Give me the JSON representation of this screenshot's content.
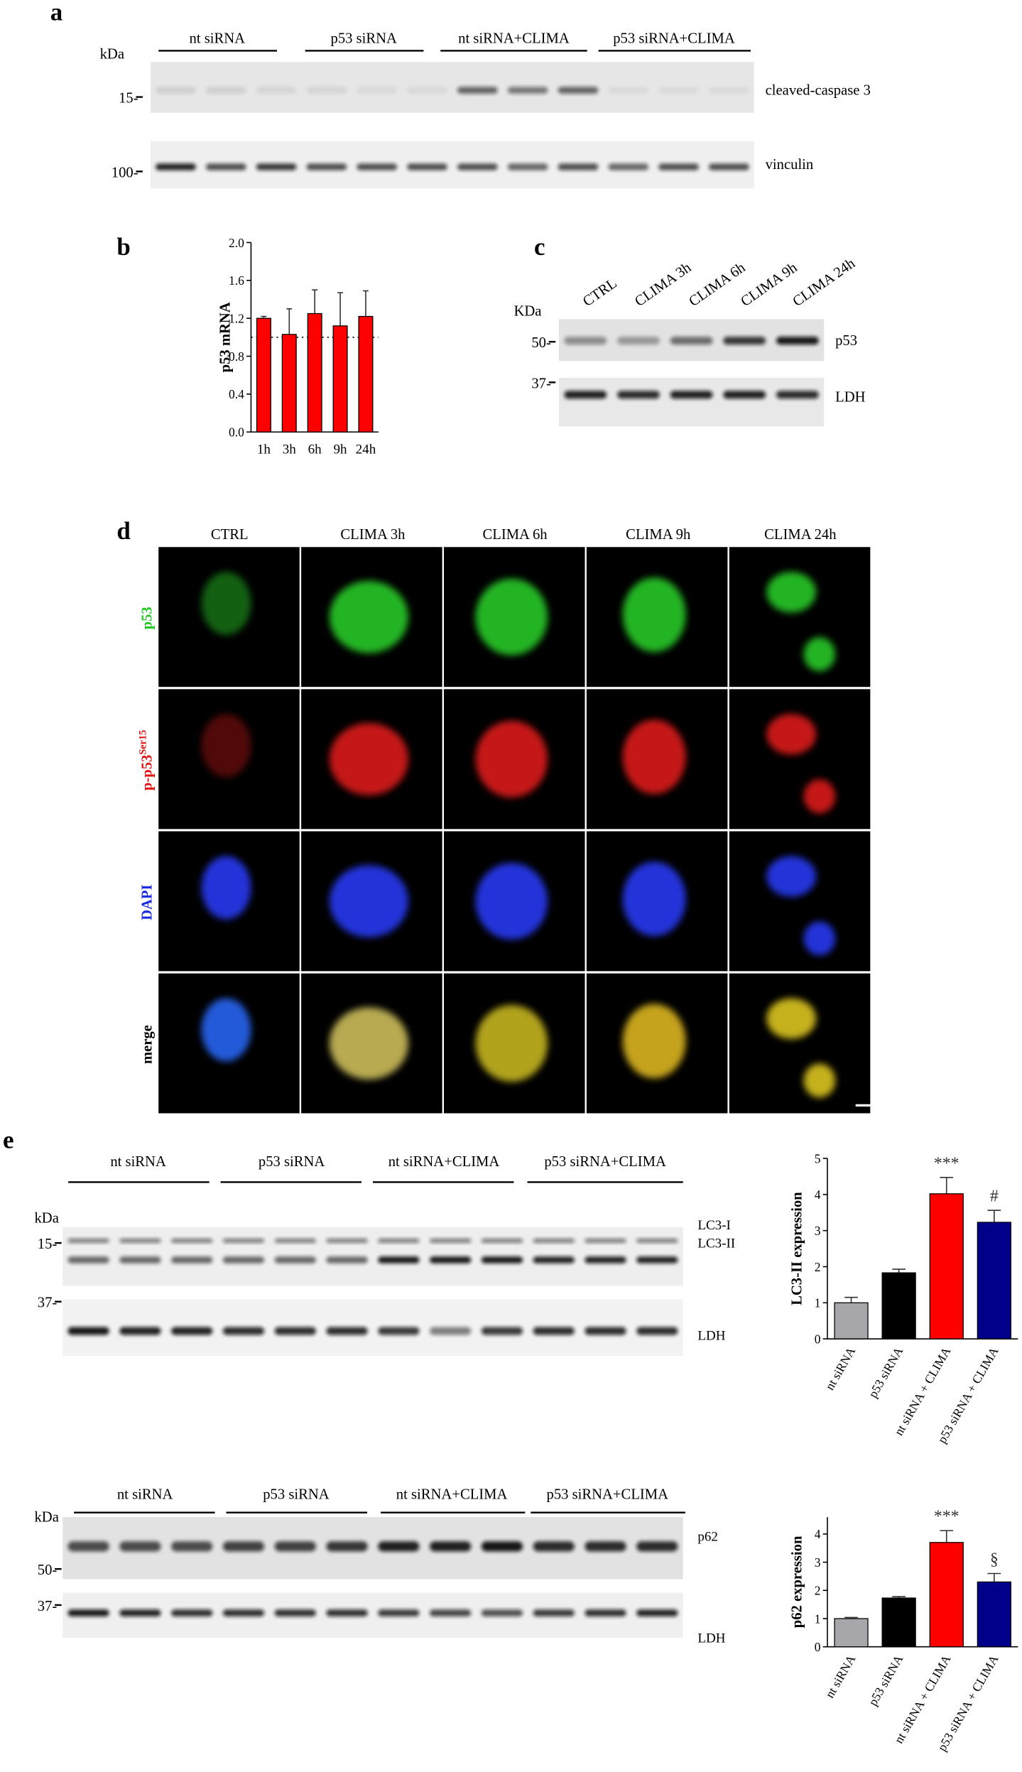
{
  "panels": {
    "a": {
      "letter": "a",
      "kda": "kDa",
      "groups": [
        "nt siRNA",
        "p53 siRNA",
        "nt siRNA+CLIMA",
        "p53 siRNA+CLIMA"
      ],
      "markers": [
        "15-",
        "100-"
      ],
      "bands": [
        "cleaved-caspase 3",
        "vinculin"
      ]
    },
    "b": {
      "letter": "b"
    },
    "c": {
      "letter": "c",
      "lanes": [
        "CTRL",
        "CLIMA 3h",
        "CLIMA 6h",
        "CLIMA 9h",
        "CLIMA 24h"
      ],
      "kda": "KDa",
      "markers": [
        "50-",
        "37-"
      ],
      "bands": [
        "p53",
        "LDH"
      ]
    },
    "d": {
      "letter": "d",
      "columns": [
        "CTRL",
        "CLIMA 3h",
        "CLIMA 6h",
        "CLIMA 9h",
        "CLIMA 24h"
      ],
      "rows": [
        {
          "label": "p53"
        },
        {
          "label": "p-p53",
          "superscript": "Ser15"
        },
        {
          "label": "DAPI"
        },
        {
          "label": "merge"
        }
      ]
    },
    "e": {
      "letter": "e",
      "top": {
        "groups": [
          "nt siRNA",
          "p53 siRNA",
          "nt siRNA+CLIMA",
          "p53 siRNA+CLIMA"
        ],
        "kda": "kDa",
        "markers": [
          "15-",
          "37-"
        ],
        "bands": [
          "LC3-I",
          "LC3-II",
          "LDH"
        ]
      },
      "bottom": {
        "groups": [
          "nt siRNA",
          "p53 siRNA",
          "nt siRNA+CLIMA",
          "p53 siRNA+CLIMA"
        ],
        "kda": "kDa",
        "markers": [
          "50-",
          "37-"
        ],
        "bands": [
          "p62",
          "LDH"
        ]
      }
    }
  },
  "chart_data": [
    {
      "type": "bar",
      "y_label": "p53 mRNA",
      "categories": [
        "1h",
        "3h",
        "6h",
        "9h",
        "24h"
      ],
      "values": [
        1.2,
        1.03,
        1.25,
        1.12,
        1.22
      ],
      "errors": [
        0.02,
        0.27,
        0.25,
        0.35,
        0.27
      ],
      "color": "#ff0000",
      "ylim": [
        0,
        2
      ],
      "yticks": [
        {
          "value": 0,
          "label": "0.0"
        },
        {
          "value": 0.4,
          "label": "0.4"
        },
        {
          "value": 0.8,
          "label": "0.8"
        },
        {
          "value": 1.2,
          "label": "1.2"
        },
        {
          "value": 1.6,
          "label": "1.6"
        },
        {
          "value": 2,
          "label": "2.0"
        }
      ],
      "reference_line": 1
    },
    {
      "type": "bar",
      "y_label": "LC3-II expression",
      "categories": [
        "nt siRNA",
        "p53 siRNA",
        "nt siRNA + CLIMA",
        "p53 siRNA + CLIMA"
      ],
      "values": [
        1.0,
        1.83,
        4.02,
        3.23
      ],
      "errors": [
        0.15,
        0.1,
        0.45,
        0.33
      ],
      "colors": [
        "#a6a6ab",
        "#000000",
        "#ff0000",
        "#00008b"
      ],
      "ylim": [
        0,
        5
      ],
      "yticks": [
        0,
        1,
        2,
        3,
        4,
        5
      ],
      "significance": [
        null,
        null,
        "***",
        "#"
      ]
    },
    {
      "type": "bar",
      "y_label": "p62 expression",
      "categories": [
        "nt siRNA",
        "p53 siRNA",
        "nt siRNA + CLIMA",
        "p53 siRNA + CLIMA"
      ],
      "values": [
        1.0,
        1.73,
        3.7,
        2.3
      ],
      "errors": [
        0.04,
        0.05,
        0.42,
        0.3
      ],
      "colors": [
        "#a6a6ab",
        "#000000",
        "#ff0000",
        "#00008b"
      ],
      "ylim": [
        0,
        4.6
      ],
      "yticks": [
        0,
        1,
        2,
        3,
        4
      ],
      "significance": [
        null,
        null,
        "***",
        "§"
      ]
    }
  ]
}
